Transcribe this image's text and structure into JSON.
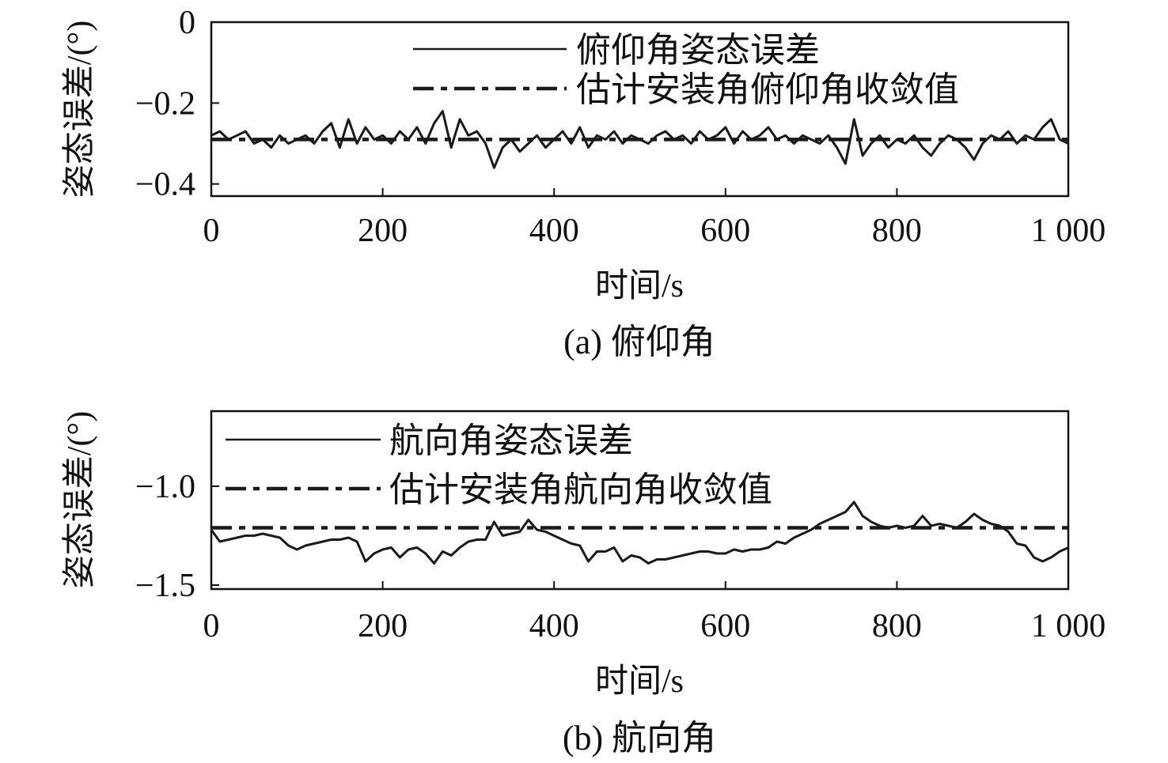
{
  "chart_data": [
    {
      "type": "line",
      "caption": "(a) 俯仰角",
      "xlabel": "时间/s",
      "ylabel": "姿态误差/(°)",
      "xlim": [
        0,
        1000
      ],
      "ylim": [
        -0.43,
        0
      ],
      "xticks": [
        0,
        200,
        400,
        600,
        800,
        1000
      ],
      "xtick_labels": [
        "0",
        "200",
        "400",
        "600",
        "800",
        "1 000"
      ],
      "yticks": [
        0,
        -0.2,
        -0.4
      ],
      "ytick_labels": [
        "0",
        "−0.2",
        "−0.4"
      ],
      "legend": {
        "position": "top-right"
      },
      "series": [
        {
          "name": "俯仰角姿态误差",
          "style": "solid",
          "x": [
            0,
            10,
            20,
            30,
            40,
            50,
            60,
            70,
            80,
            90,
            100,
            110,
            120,
            130,
            140,
            150,
            160,
            170,
            180,
            190,
            200,
            210,
            220,
            230,
            240,
            250,
            260,
            270,
            280,
            290,
            300,
            310,
            320,
            330,
            340,
            350,
            360,
            370,
            380,
            390,
            400,
            410,
            420,
            430,
            440,
            450,
            460,
            470,
            480,
            490,
            500,
            510,
            520,
            530,
            540,
            550,
            560,
            570,
            580,
            590,
            600,
            610,
            620,
            630,
            640,
            650,
            660,
            670,
            680,
            690,
            700,
            710,
            720,
            730,
            740,
            750,
            760,
            770,
            780,
            790,
            800,
            810,
            820,
            830,
            840,
            850,
            860,
            870,
            880,
            890,
            900,
            910,
            920,
            930,
            940,
            950,
            960,
            970,
            980,
            990,
            1000
          ],
          "y": [
            -0.28,
            -0.27,
            -0.29,
            -0.28,
            -0.27,
            -0.3,
            -0.29,
            -0.31,
            -0.28,
            -0.3,
            -0.29,
            -0.28,
            -0.3,
            -0.27,
            -0.25,
            -0.31,
            -0.24,
            -0.3,
            -0.26,
            -0.29,
            -0.28,
            -0.3,
            -0.27,
            -0.29,
            -0.26,
            -0.3,
            -0.25,
            -0.22,
            -0.31,
            -0.24,
            -0.28,
            -0.27,
            -0.3,
            -0.36,
            -0.31,
            -0.29,
            -0.32,
            -0.3,
            -0.28,
            -0.31,
            -0.29,
            -0.27,
            -0.3,
            -0.26,
            -0.31,
            -0.28,
            -0.29,
            -0.27,
            -0.3,
            -0.28,
            -0.29,
            -0.3,
            -0.28,
            -0.27,
            -0.29,
            -0.28,
            -0.3,
            -0.27,
            -0.29,
            -0.28,
            -0.26,
            -0.3,
            -0.27,
            -0.29,
            -0.28,
            -0.26,
            -0.29,
            -0.28,
            -0.3,
            -0.28,
            -0.29,
            -0.3,
            -0.28,
            -0.31,
            -0.35,
            -0.24,
            -0.33,
            -0.3,
            -0.28,
            -0.31,
            -0.29,
            -0.3,
            -0.28,
            -0.31,
            -0.33,
            -0.3,
            -0.28,
            -0.29,
            -0.31,
            -0.34,
            -0.3,
            -0.28,
            -0.29,
            -0.27,
            -0.3,
            -0.28,
            -0.29,
            -0.26,
            -0.24,
            -0.29,
            -0.3
          ]
        },
        {
          "name": "估计安装角俯仰角收敛值",
          "style": "dash-dot",
          "x": [
            0,
            1000
          ],
          "y": [
            -0.29,
            -0.29
          ]
        }
      ]
    },
    {
      "type": "line",
      "caption": "(b) 航向角",
      "xlabel": "时间/s",
      "ylabel": "姿态误差/(°)",
      "xlim": [
        0,
        1000
      ],
      "ylim": [
        -1.52,
        -0.62
      ],
      "xticks": [
        0,
        200,
        400,
        600,
        800,
        1000
      ],
      "xtick_labels": [
        "0",
        "200",
        "400",
        "600",
        "800",
        "1 000"
      ],
      "yticks": [
        -1.0,
        -1.5
      ],
      "ytick_labels": [
        "−1.0",
        "−1.5"
      ],
      "legend": {
        "position": "top-left"
      },
      "series": [
        {
          "name": "航向角姿态误差",
          "style": "solid",
          "x": [
            0,
            10,
            20,
            30,
            40,
            50,
            60,
            70,
            80,
            90,
            100,
            110,
            120,
            130,
            140,
            150,
            160,
            170,
            180,
            190,
            200,
            210,
            220,
            230,
            240,
            250,
            260,
            270,
            280,
            290,
            300,
            310,
            320,
            330,
            340,
            350,
            360,
            370,
            380,
            390,
            400,
            410,
            420,
            430,
            440,
            450,
            460,
            470,
            480,
            490,
            500,
            510,
            520,
            530,
            540,
            550,
            560,
            570,
            580,
            590,
            600,
            610,
            620,
            630,
            640,
            650,
            660,
            670,
            680,
            690,
            700,
            710,
            720,
            730,
            740,
            750,
            760,
            770,
            780,
            790,
            800,
            810,
            820,
            830,
            840,
            850,
            860,
            870,
            880,
            890,
            900,
            910,
            920,
            930,
            940,
            950,
            960,
            970,
            980,
            990,
            1000
          ],
          "y": [
            -1.22,
            -1.28,
            -1.27,
            -1.26,
            -1.25,
            -1.25,
            -1.24,
            -1.25,
            -1.26,
            -1.3,
            -1.32,
            -1.3,
            -1.29,
            -1.28,
            -1.27,
            -1.27,
            -1.26,
            -1.28,
            -1.38,
            -1.34,
            -1.32,
            -1.31,
            -1.36,
            -1.32,
            -1.31,
            -1.34,
            -1.39,
            -1.33,
            -1.35,
            -1.31,
            -1.28,
            -1.27,
            -1.27,
            -1.18,
            -1.25,
            -1.24,
            -1.23,
            -1.17,
            -1.22,
            -1.23,
            -1.25,
            -1.27,
            -1.29,
            -1.3,
            -1.38,
            -1.33,
            -1.33,
            -1.31,
            -1.38,
            -1.35,
            -1.36,
            -1.39,
            -1.37,
            -1.37,
            -1.36,
            -1.35,
            -1.34,
            -1.33,
            -1.33,
            -1.34,
            -1.34,
            -1.32,
            -1.33,
            -1.32,
            -1.32,
            -1.31,
            -1.28,
            -1.29,
            -1.26,
            -1.24,
            -1.22,
            -1.19,
            -1.17,
            -1.15,
            -1.13,
            -1.08,
            -1.15,
            -1.18,
            -1.2,
            -1.21,
            -1.2,
            -1.21,
            -1.2,
            -1.15,
            -1.2,
            -1.19,
            -1.2,
            -1.21,
            -1.18,
            -1.14,
            -1.17,
            -1.19,
            -1.2,
            -1.23,
            -1.29,
            -1.3,
            -1.36,
            -1.38,
            -1.36,
            -1.33,
            -1.31
          ]
        },
        {
          "name": "估计安装角航向角收敛值",
          "style": "dash-dot",
          "x": [
            0,
            1000
          ],
          "y": [
            -1.21,
            -1.21
          ]
        }
      ]
    }
  ]
}
